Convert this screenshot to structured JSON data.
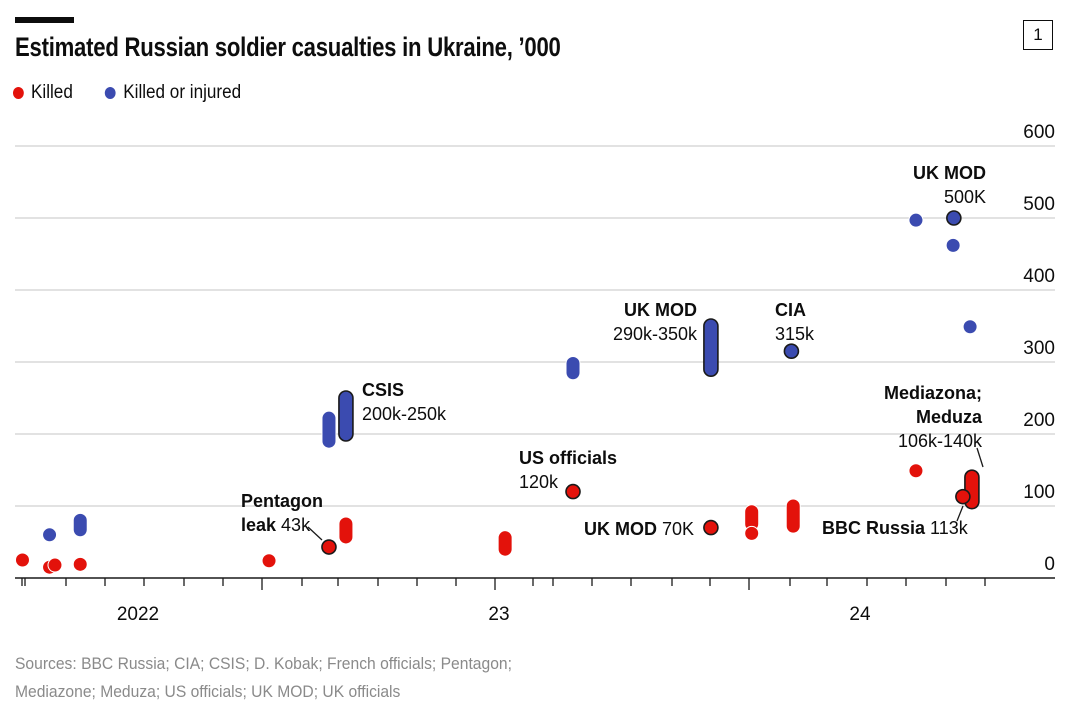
{
  "badge": "1",
  "chart_data": {
    "type": "scatter",
    "title": "Estimated Russian soldier casualties in Ukraine, ’000",
    "legend": [
      {
        "key": "killed",
        "label": "Killed",
        "color": "#e3120b"
      },
      {
        "key": "injured",
        "label": "Killed or injured",
        "color": "#3b4bb0"
      }
    ],
    "legend_position": "top-left",
    "xlabel": "",
    "ylabel": "",
    "x_ticks": [
      {
        "t": 2022,
        "label": "2022"
      },
      {
        "t": 2023,
        "label": "23"
      },
      {
        "t": 2024,
        "label": "24"
      }
    ],
    "y_ticks": [
      0,
      100,
      200,
      300,
      400,
      500,
      600
    ],
    "y_tick_labels": [
      "0",
      "100",
      "200",
      "300",
      "400",
      "500",
      "600"
    ],
    "ylim": [
      0,
      600
    ],
    "xlim": [
      2021.63,
      2024.55
    ],
    "grid": true,
    "points": [
      {
        "series": "killed",
        "t": 2021.68,
        "v": 25
      },
      {
        "series": "killed",
        "t": 2021.755,
        "v": 15
      },
      {
        "series": "killed",
        "t": 2021.77,
        "v": 18
      },
      {
        "series": "killed",
        "t": 2021.84,
        "v": 19
      },
      {
        "series": "killed",
        "t": 2022.363,
        "v": 24
      },
      {
        "series": "killed",
        "t": 2022.529,
        "v": 43,
        "highlight": true
      },
      {
        "series": "killed",
        "t": 2022.576,
        "lo": 57,
        "hi": 75
      },
      {
        "series": "killed",
        "t": 2023.017,
        "lo": 40,
        "hi": 56
      },
      {
        "series": "killed",
        "t": 2023.205,
        "v": 120,
        "highlight": true
      },
      {
        "series": "killed",
        "t": 2023.587,
        "v": 70,
        "highlight": true
      },
      {
        "series": "killed",
        "t": 2023.7,
        "lo": 75,
        "hi": 92
      },
      {
        "series": "killed",
        "t": 2023.7,
        "v": 62
      },
      {
        "series": "killed",
        "t": 2023.815,
        "lo": 72,
        "hi": 100
      },
      {
        "series": "killed",
        "t": 2024.155,
        "v": 149
      },
      {
        "series": "killed",
        "t": 2024.31,
        "lo": 106,
        "hi": 140,
        "highlight": true
      },
      {
        "series": "killed",
        "t": 2024.285,
        "v": 113,
        "highlight": true
      },
      {
        "series": "injured",
        "t": 2021.755,
        "v": 60
      },
      {
        "series": "injured",
        "t": 2021.84,
        "lo": 67,
        "hi": 80
      },
      {
        "series": "injured",
        "t": 2022.529,
        "lo": 190,
        "hi": 222
      },
      {
        "series": "injured",
        "t": 2022.576,
        "lo": 200,
        "hi": 250,
        "highlight": true
      },
      {
        "series": "injured",
        "t": 2023.205,
        "lo": 285,
        "hi": 298
      },
      {
        "series": "injured",
        "t": 2023.587,
        "lo": 290,
        "hi": 350,
        "highlight": true
      },
      {
        "series": "injured",
        "t": 2023.81,
        "v": 315,
        "highlight": true
      },
      {
        "series": "injured",
        "t": 2024.155,
        "v": 497
      },
      {
        "series": "injured",
        "t": 2024.26,
        "v": 500,
        "highlight": true
      },
      {
        "series": "injured",
        "t": 2024.258,
        "v": 462
      },
      {
        "series": "injured",
        "t": 2024.305,
        "v": 349
      }
    ],
    "annotations": [
      {
        "bold": [
          "Pentagon",
          "leak"
        ],
        "value": "43k"
      },
      {
        "bold": [
          "CSIS"
        ],
        "value": "200k-250k"
      },
      {
        "bold": [
          "US officials"
        ],
        "value": "120k"
      },
      {
        "bold": [
          "UK MOD"
        ],
        "value": "290k-350k"
      },
      {
        "bold": [
          "CIA"
        ],
        "value": "315k"
      },
      {
        "bold": [
          "UK MOD"
        ],
        "value": "70K"
      },
      {
        "bold": [
          "UK MOD"
        ],
        "value": "500K"
      },
      {
        "bold": [
          "Mediazona;",
          "Meduza"
        ],
        "value": "106k-140k"
      },
      {
        "bold": [
          "BBC Russia"
        ],
        "value": "113k"
      }
    ]
  },
  "sources": [
    "Sources: BBC Russia; CIA; CSIS; D. Kobak; French officials; Pentagon;",
    "Mediazone; Meduza; US officials; UK MOD; UK officials"
  ]
}
